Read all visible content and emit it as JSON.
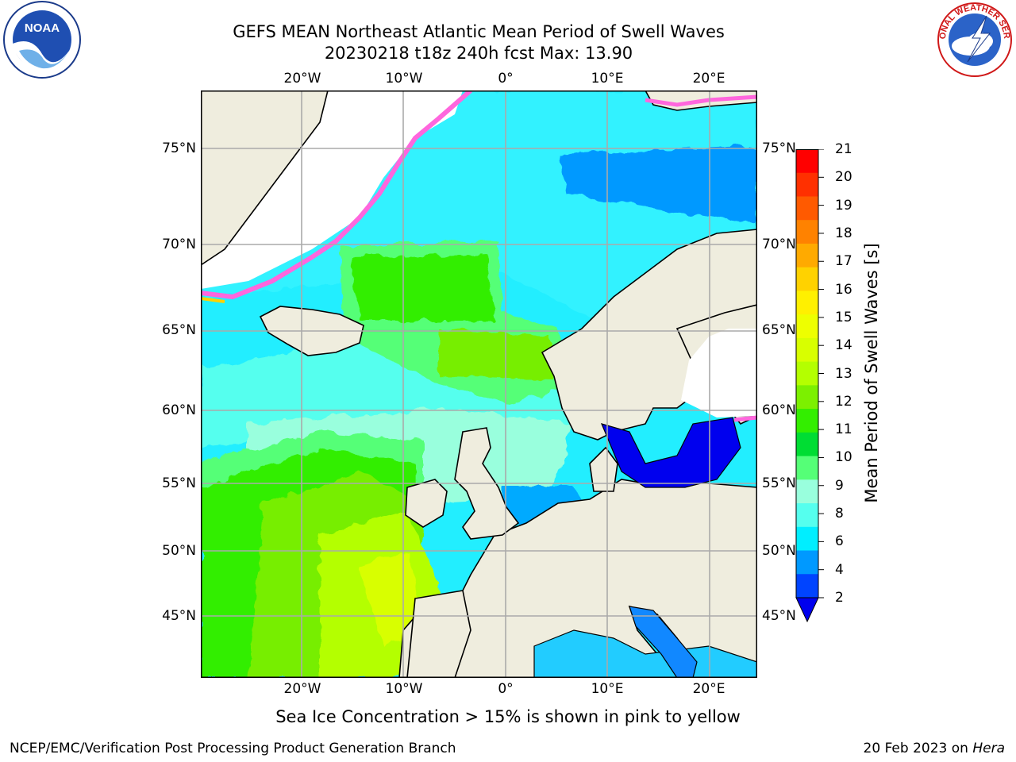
{
  "header": {
    "title_line1": "GEFS MEAN Northeast Atlantic Mean Period of Swell Waves",
    "title_line2": "20230218 t18z 240h fcst   Max: 13.90"
  },
  "logos": {
    "left": {
      "icon": "noaa-logo-icon",
      "text": "NOAA"
    },
    "right": {
      "icon": "national-weather-service-logo-icon",
      "text": "NATIONAL WEATHER SERVICE"
    }
  },
  "map": {
    "lon_labels": [
      "20°W",
      "10°W",
      "0°",
      "10°E",
      "20°E"
    ],
    "lat_labels": [
      "75°N",
      "70°N",
      "65°N",
      "60°N",
      "55°N",
      "50°N",
      "45°N"
    ],
    "note": "Sea Ice Concentration > 15% is shown in pink to yellow"
  },
  "colorbar": {
    "label": "Mean Period of Swell Waves [s]",
    "ticks": [
      "21",
      "20",
      "19",
      "18",
      "17",
      "16",
      "15",
      "14",
      "13",
      "12",
      "11",
      "10",
      "9",
      "8",
      "6",
      "4",
      "2"
    ],
    "colors": [
      "#ff0000",
      "#ff3000",
      "#ff5a00",
      "#ff8200",
      "#ffaa00",
      "#ffd200",
      "#fff000",
      "#eeff00",
      "#d8ff00",
      "#b4ff00",
      "#7cf000",
      "#33ee00",
      "#00dd33",
      "#55ff77",
      "#99ffdd",
      "#55ffee",
      "#00eeff",
      "#0099ff",
      "#0044ff"
    ]
  },
  "footer": {
    "left": "NCEP/EMC/Verification Post Processing Product Generation Branch",
    "right_prefix": "20 Feb 2023 on ",
    "right_host": "Hera"
  }
}
